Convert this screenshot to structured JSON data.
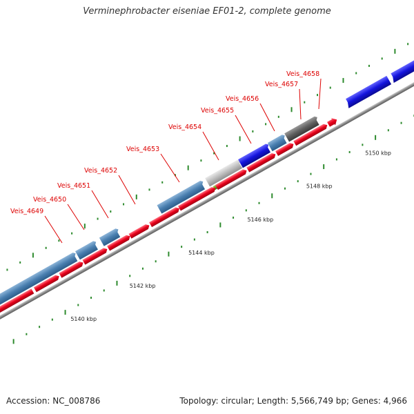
{
  "title": "Verminephrobacter eiseniae EF01-2, complete genome",
  "footer": {
    "accession": "Accession: NC_008786",
    "summary": "Topology: circular; Length: 5,566,749 bp; Genes: 4,966"
  },
  "colors": {
    "background": "#ffffff",
    "backbone": "#7f7f7f",
    "forward_gene": "#4a7fb0",
    "reverse_gene": "#e8001a",
    "label": "#dd0000",
    "tick": "#2e8b2e",
    "highlight_blue": "#1414dd",
    "highlight_green": "#6f9a20",
    "highlight_gray": "#bebebe",
    "highlight_dark": "#606060"
  },
  "ticks": [
    {
      "label": "5140 kbp",
      "kbp": 5140
    },
    {
      "label": "5142 kbp",
      "kbp": 5142
    },
    {
      "label": "5144 kbp",
      "kbp": 5144
    },
    {
      "label": "5146 kbp",
      "kbp": 5146
    },
    {
      "label": "5148 kbp",
      "kbp": 5148
    },
    {
      "label": "5150 kbp",
      "kbp": 5150
    }
  ],
  "gene_labels": [
    {
      "name": "Veis_4649"
    },
    {
      "name": "Veis_4650"
    },
    {
      "name": "Veis_4651"
    },
    {
      "name": "Veis_4652"
    },
    {
      "name": "Veis_4653"
    },
    {
      "name": "Veis_4654"
    },
    {
      "name": "Veis_4655"
    },
    {
      "name": "Veis_4656"
    },
    {
      "name": "Veis_4657"
    },
    {
      "name": "Veis_4658"
    }
  ]
}
